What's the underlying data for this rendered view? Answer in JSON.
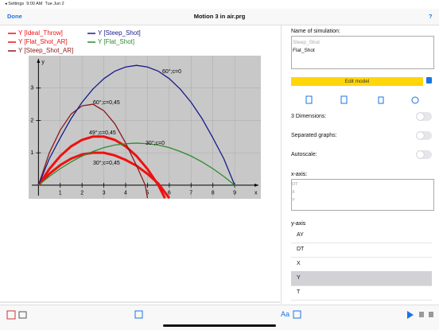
{
  "status_bar": {
    "back": "Settings",
    "time": "9:00 AM",
    "date": "Tue Jun 2"
  },
  "nav_bar": {
    "left_button": "Done",
    "title": "Motion 3 in air.prg",
    "right_button": "?"
  },
  "chart_data": {
    "type": "line",
    "x_label": "x",
    "y_label": "y",
    "xlim": [
      -0.45,
      10.2
    ],
    "ylim": [
      -0.42,
      4.0
    ],
    "xticks": [
      1,
      2,
      3,
      4,
      5,
      6,
      7,
      8,
      9
    ],
    "yticks": [
      1,
      2,
      3
    ],
    "grid": true,
    "series": [
      {
        "name": "Y [Ideal_Throw]",
        "color": "#ee1111",
        "line_width": 3,
        "x": [
          0,
          0.5,
          1,
          1.5,
          2,
          2.5,
          3,
          3.5,
          4,
          4.5,
          5,
          5.5,
          5.8
        ],
        "values": [
          0,
          0.5,
          0.9,
          1.2,
          1.4,
          1.5,
          1.5,
          1.4,
          1.2,
          0.9,
          0.5,
          0,
          -0.4
        ]
      },
      {
        "name": "Y [Flat_Shot_AR]",
        "color": "#ee1111",
        "line_width": 3,
        "x": [
          0,
          0.5,
          1,
          1.5,
          2,
          2.5,
          3,
          3.5,
          4,
          4.5,
          5,
          5.5,
          6
        ],
        "values": [
          0,
          0.35,
          0.62,
          0.82,
          0.95,
          1.0,
          1.0,
          0.92,
          0.78,
          0.6,
          0.35,
          0.05,
          -0.4
        ]
      },
      {
        "name": "Y [Steep_Shot_AR]",
        "color": "#8b1a1a",
        "line_width": 1.3,
        "x": [
          0,
          0.5,
          1,
          1.5,
          2,
          2.5,
          3,
          3.5,
          4,
          4.5,
          4.9,
          5
        ],
        "values": [
          0,
          1.0,
          1.7,
          2.2,
          2.45,
          2.5,
          2.3,
          1.9,
          1.3,
          0.6,
          0,
          -0.4
        ]
      },
      {
        "name": "Y [Steep_Shot]",
        "color": "#1a1a8c",
        "line_width": 1.3,
        "x": [
          0,
          0.5,
          1,
          1.5,
          2,
          2.5,
          3,
          3.5,
          4,
          4.5,
          5,
          5.5,
          6,
          6.5,
          7,
          7.5,
          8,
          8.5,
          9
        ],
        "values": [
          0,
          0.82,
          1.46,
          2.06,
          2.56,
          2.97,
          3.29,
          3.52,
          3.65,
          3.7,
          3.65,
          3.52,
          3.29,
          2.97,
          2.56,
          2.06,
          1.46,
          0.82,
          0
        ]
      },
      {
        "name": "Y [Flat_Shot]",
        "color": "#2e8b2e",
        "line_width": 1.3,
        "x": [
          0,
          0.5,
          1,
          1.5,
          2,
          2.5,
          3,
          3.5,
          4,
          4.5,
          5,
          5.5,
          6,
          6.5,
          7,
          7.5,
          8,
          8.5,
          9
        ],
        "values": [
          0,
          0.27,
          0.51,
          0.72,
          0.9,
          1.04,
          1.16,
          1.24,
          1.28,
          1.3,
          1.28,
          1.24,
          1.16,
          1.04,
          0.9,
          0.72,
          0.51,
          0.27,
          0
        ]
      }
    ],
    "annotations": [
      "60°;c=0",
      "60°;c=0,45",
      "49°;c=0,45",
      "30°;c=0",
      "30°;c=0,45"
    ]
  },
  "settings_panel": {
    "name_label": "Name of simulation:",
    "names": [
      "Steep_Shot",
      "Flat_Shot"
    ],
    "edit_button": "Edit model",
    "toggles": [
      "3 Dimensions:",
      "Separated graphs:",
      "Autoscale:"
    ],
    "x_axis_label": "x-axis:",
    "x_axis_options": [
      "DT",
      "X",
      "Y"
    ],
    "y_axis_label": "y-axis",
    "y_axis_options": [
      "AY",
      "DT",
      "X",
      "Y",
      "T"
    ],
    "y_axis_selected": 3
  },
  "toolbar": {
    "font_button": "Aa"
  }
}
